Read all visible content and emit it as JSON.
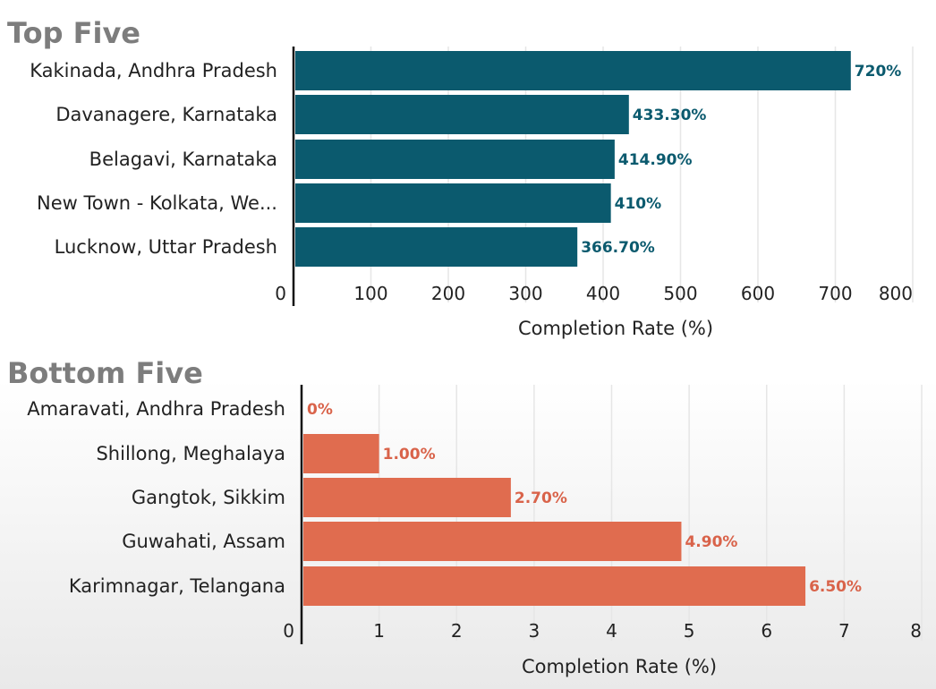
{
  "chart_data": [
    {
      "type": "bar",
      "orientation": "horizontal",
      "title": "Top Five",
      "categories": [
        "Kakinada, Andhra Pradesh",
        "Davanagere, Karnataka",
        "Belagavi, Karnataka",
        "New Town - Kolkata, We...",
        "Lucknow, Uttar Pradesh"
      ],
      "values": [
        720,
        433.3,
        414.9,
        410,
        366.7
      ],
      "value_labels": [
        "720%",
        "433.30%",
        "414.90%",
        "410%",
        "366.70%"
      ],
      "xlabel": "Completion Rate (%)",
      "ylabel": "",
      "xlim": [
        0,
        800
      ],
      "xticks": [
        "0",
        "100",
        "200",
        "300",
        "400",
        "500",
        "600",
        "700",
        "800"
      ],
      "grid": true,
      "color": "#0b5a6e",
      "label_color": "#0b5a6e"
    },
    {
      "type": "bar",
      "orientation": "horizontal",
      "title": "Bottom Five",
      "categories": [
        "Amaravati, Andhra Pradesh",
        "Shillong, Meghalaya",
        "Gangtok, Sikkim",
        "Guwahati, Assam",
        "Karimnagar, Telangana"
      ],
      "values": [
        0,
        1.0,
        2.7,
        4.9,
        6.5
      ],
      "value_labels": [
        "0%",
        "1.00%",
        "2.70%",
        "4.90%",
        "6.50%"
      ],
      "xlabel": "Completion Rate (%)",
      "ylabel": "",
      "xlim": [
        0,
        8
      ],
      "xticks": [
        "0",
        "1",
        "2",
        "3",
        "4",
        "5",
        "6",
        "7",
        "8"
      ],
      "grid": true,
      "color": "#e06c4f",
      "label_color": "#d9634a"
    }
  ]
}
